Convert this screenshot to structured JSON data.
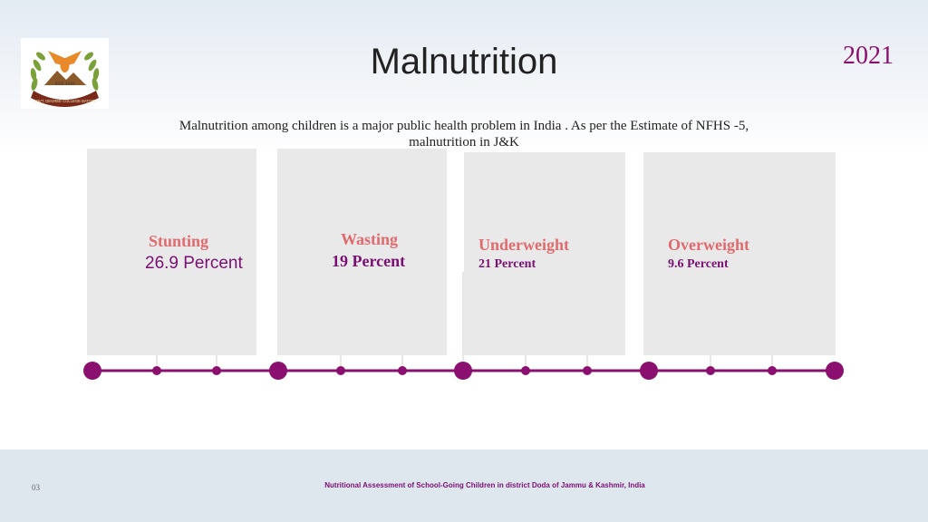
{
  "header": {
    "title": "Malnutrition",
    "year": "2021",
    "logo": {
      "icon": "college-emblem-icon",
      "est_text": "EST. 2019",
      "ribbon_text": "GOVT. DEGREE COLLEGE BATOTE"
    }
  },
  "intro": {
    "line1": "Malnutrition among children is a major public health problem in India . As per the Estimate of NFHS -5,",
    "line2": "malnutrition in J&K"
  },
  "indicators": [
    {
      "label": "Stunting",
      "value": "26.9 Percent"
    },
    {
      "label": "Wasting",
      "value": "19 Percent"
    },
    {
      "label": "Underweight",
      "value": "21 Percent"
    },
    {
      "label": "Overweight",
      "value": "9.6 Percent"
    }
  ],
  "footer": {
    "page": "03",
    "note": "Nutritional Assessment of School-Going Children in district Doda of Jammu & Kashmir, India"
  },
  "colors": {
    "accent": "#8a0f6e",
    "label": "#e06b6e",
    "card": "#e9e9e9"
  }
}
